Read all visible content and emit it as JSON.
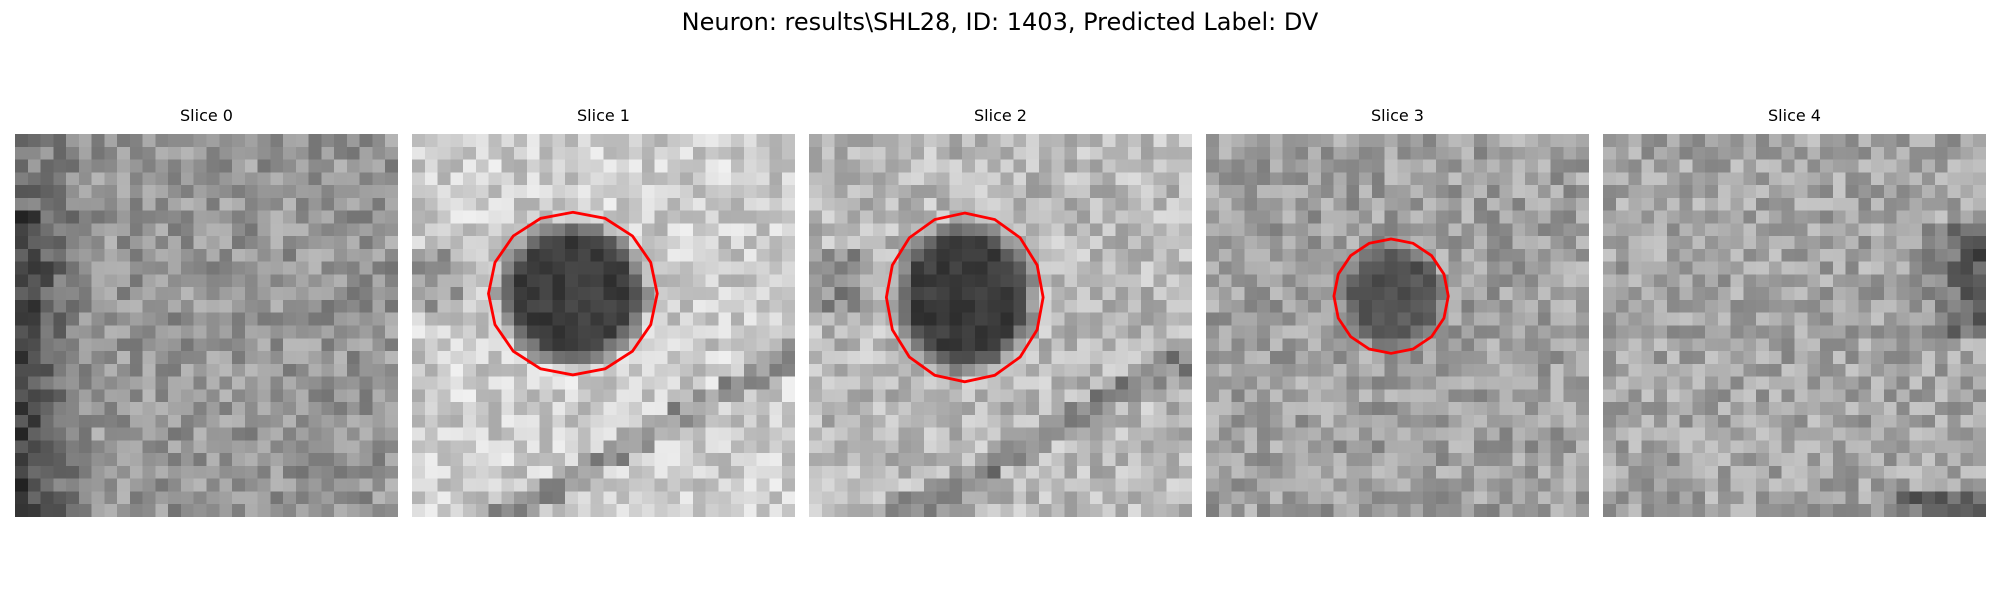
{
  "figure": {
    "suptitle": "Neuron: results\\SHL28, ID: 1403, Predicted Label: DV"
  },
  "colors": {
    "contour": "#ff0000",
    "background": "#ffffff"
  },
  "panels": [
    {
      "title": "Slice 0",
      "seed": 11,
      "base": 150,
      "blob": 0,
      "contour": false,
      "edge": "left-dark"
    },
    {
      "title": "Slice 1",
      "seed": 23,
      "base": 205,
      "blob": 1,
      "contour": true,
      "edge": "diag"
    },
    {
      "title": "Slice 2",
      "seed": 37,
      "base": 185,
      "blob": 1,
      "contour": true,
      "edge": "diag"
    },
    {
      "title": "Slice 3",
      "seed": 51,
      "base": 160,
      "blob": 0.75,
      "contour": true,
      "edge": "none"
    },
    {
      "title": "Slice 4",
      "seed": 67,
      "base": 165,
      "blob": 0,
      "contour": false,
      "edge": "right-dark"
    }
  ]
}
